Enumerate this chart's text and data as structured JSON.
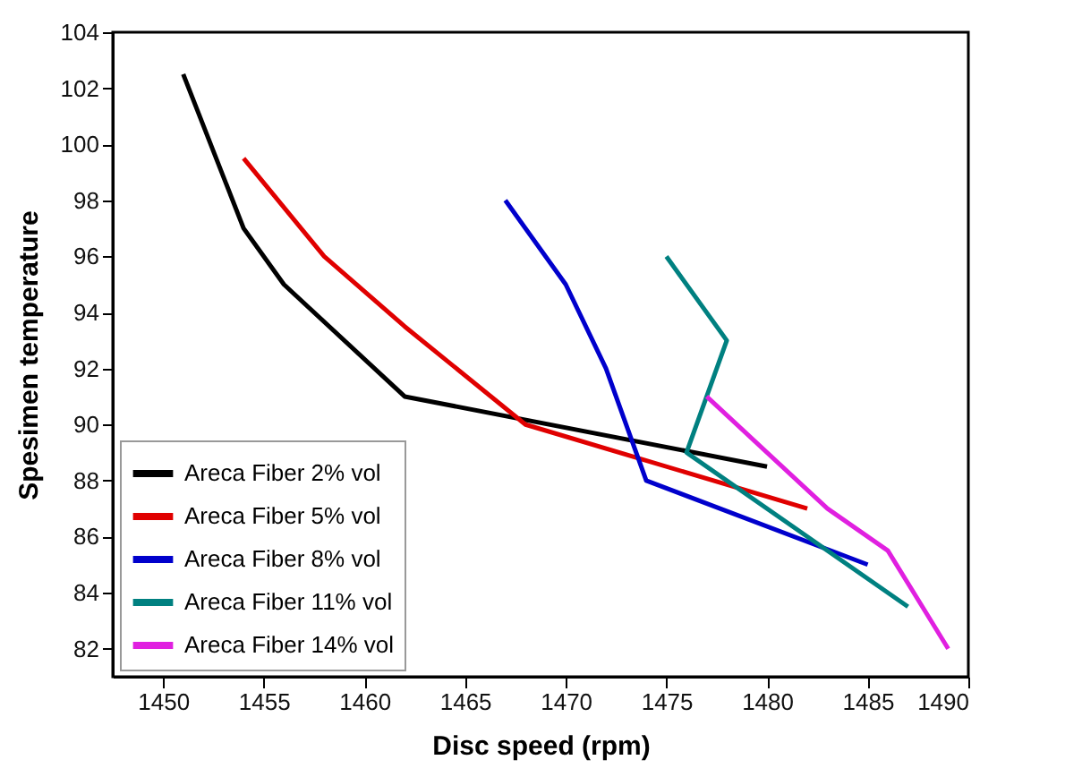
{
  "chart_data": {
    "type": "line",
    "xlabel": "Disc speed (rpm)",
    "ylabel": "Spesimen temperature",
    "xlim": [
      1447.5,
      1490
    ],
    "xticks": [
      1450,
      1455,
      1460,
      1465,
      1470,
      1475,
      1480,
      1485,
      1490
    ],
    "ylim": [
      81,
      104
    ],
    "yticks": [
      82,
      84,
      86,
      88,
      90,
      92,
      94,
      96,
      98,
      100,
      102,
      104
    ],
    "grid": false,
    "legend": "bottom left",
    "marker": "none",
    "line_style": "solid",
    "series": [
      {
        "name": "Areca Fiber 2% vol",
        "color": "#000000",
        "x": [
          1451,
          1454,
          1456,
          1462,
          1480
        ],
        "values": [
          102.5,
          97,
          95,
          91,
          88.5
        ]
      },
      {
        "name": "Areca Fiber 5% vol",
        "color": "#e00000",
        "x": [
          1454,
          1458,
          1462,
          1468,
          1482
        ],
        "values": [
          99.5,
          96,
          93.5,
          90,
          87
        ]
      },
      {
        "name": "Areca Fiber 8% vol",
        "color": "#0000cc",
        "x": [
          1467,
          1470,
          1472,
          1474,
          1485
        ],
        "values": [
          98,
          95,
          92,
          88,
          85
        ]
      },
      {
        "name": "Areca Fiber 11% vol",
        "color": "#008080",
        "x": [
          1475,
          1478,
          1476,
          1487
        ],
        "values": [
          96,
          93,
          89,
          83.5
        ]
      },
      {
        "name": "Areca Fiber 14% vol",
        "color": "#e020e0",
        "x": [
          1477,
          1483,
          1486,
          1489
        ],
        "values": [
          91,
          87,
          85.5,
          82
        ]
      }
    ]
  }
}
